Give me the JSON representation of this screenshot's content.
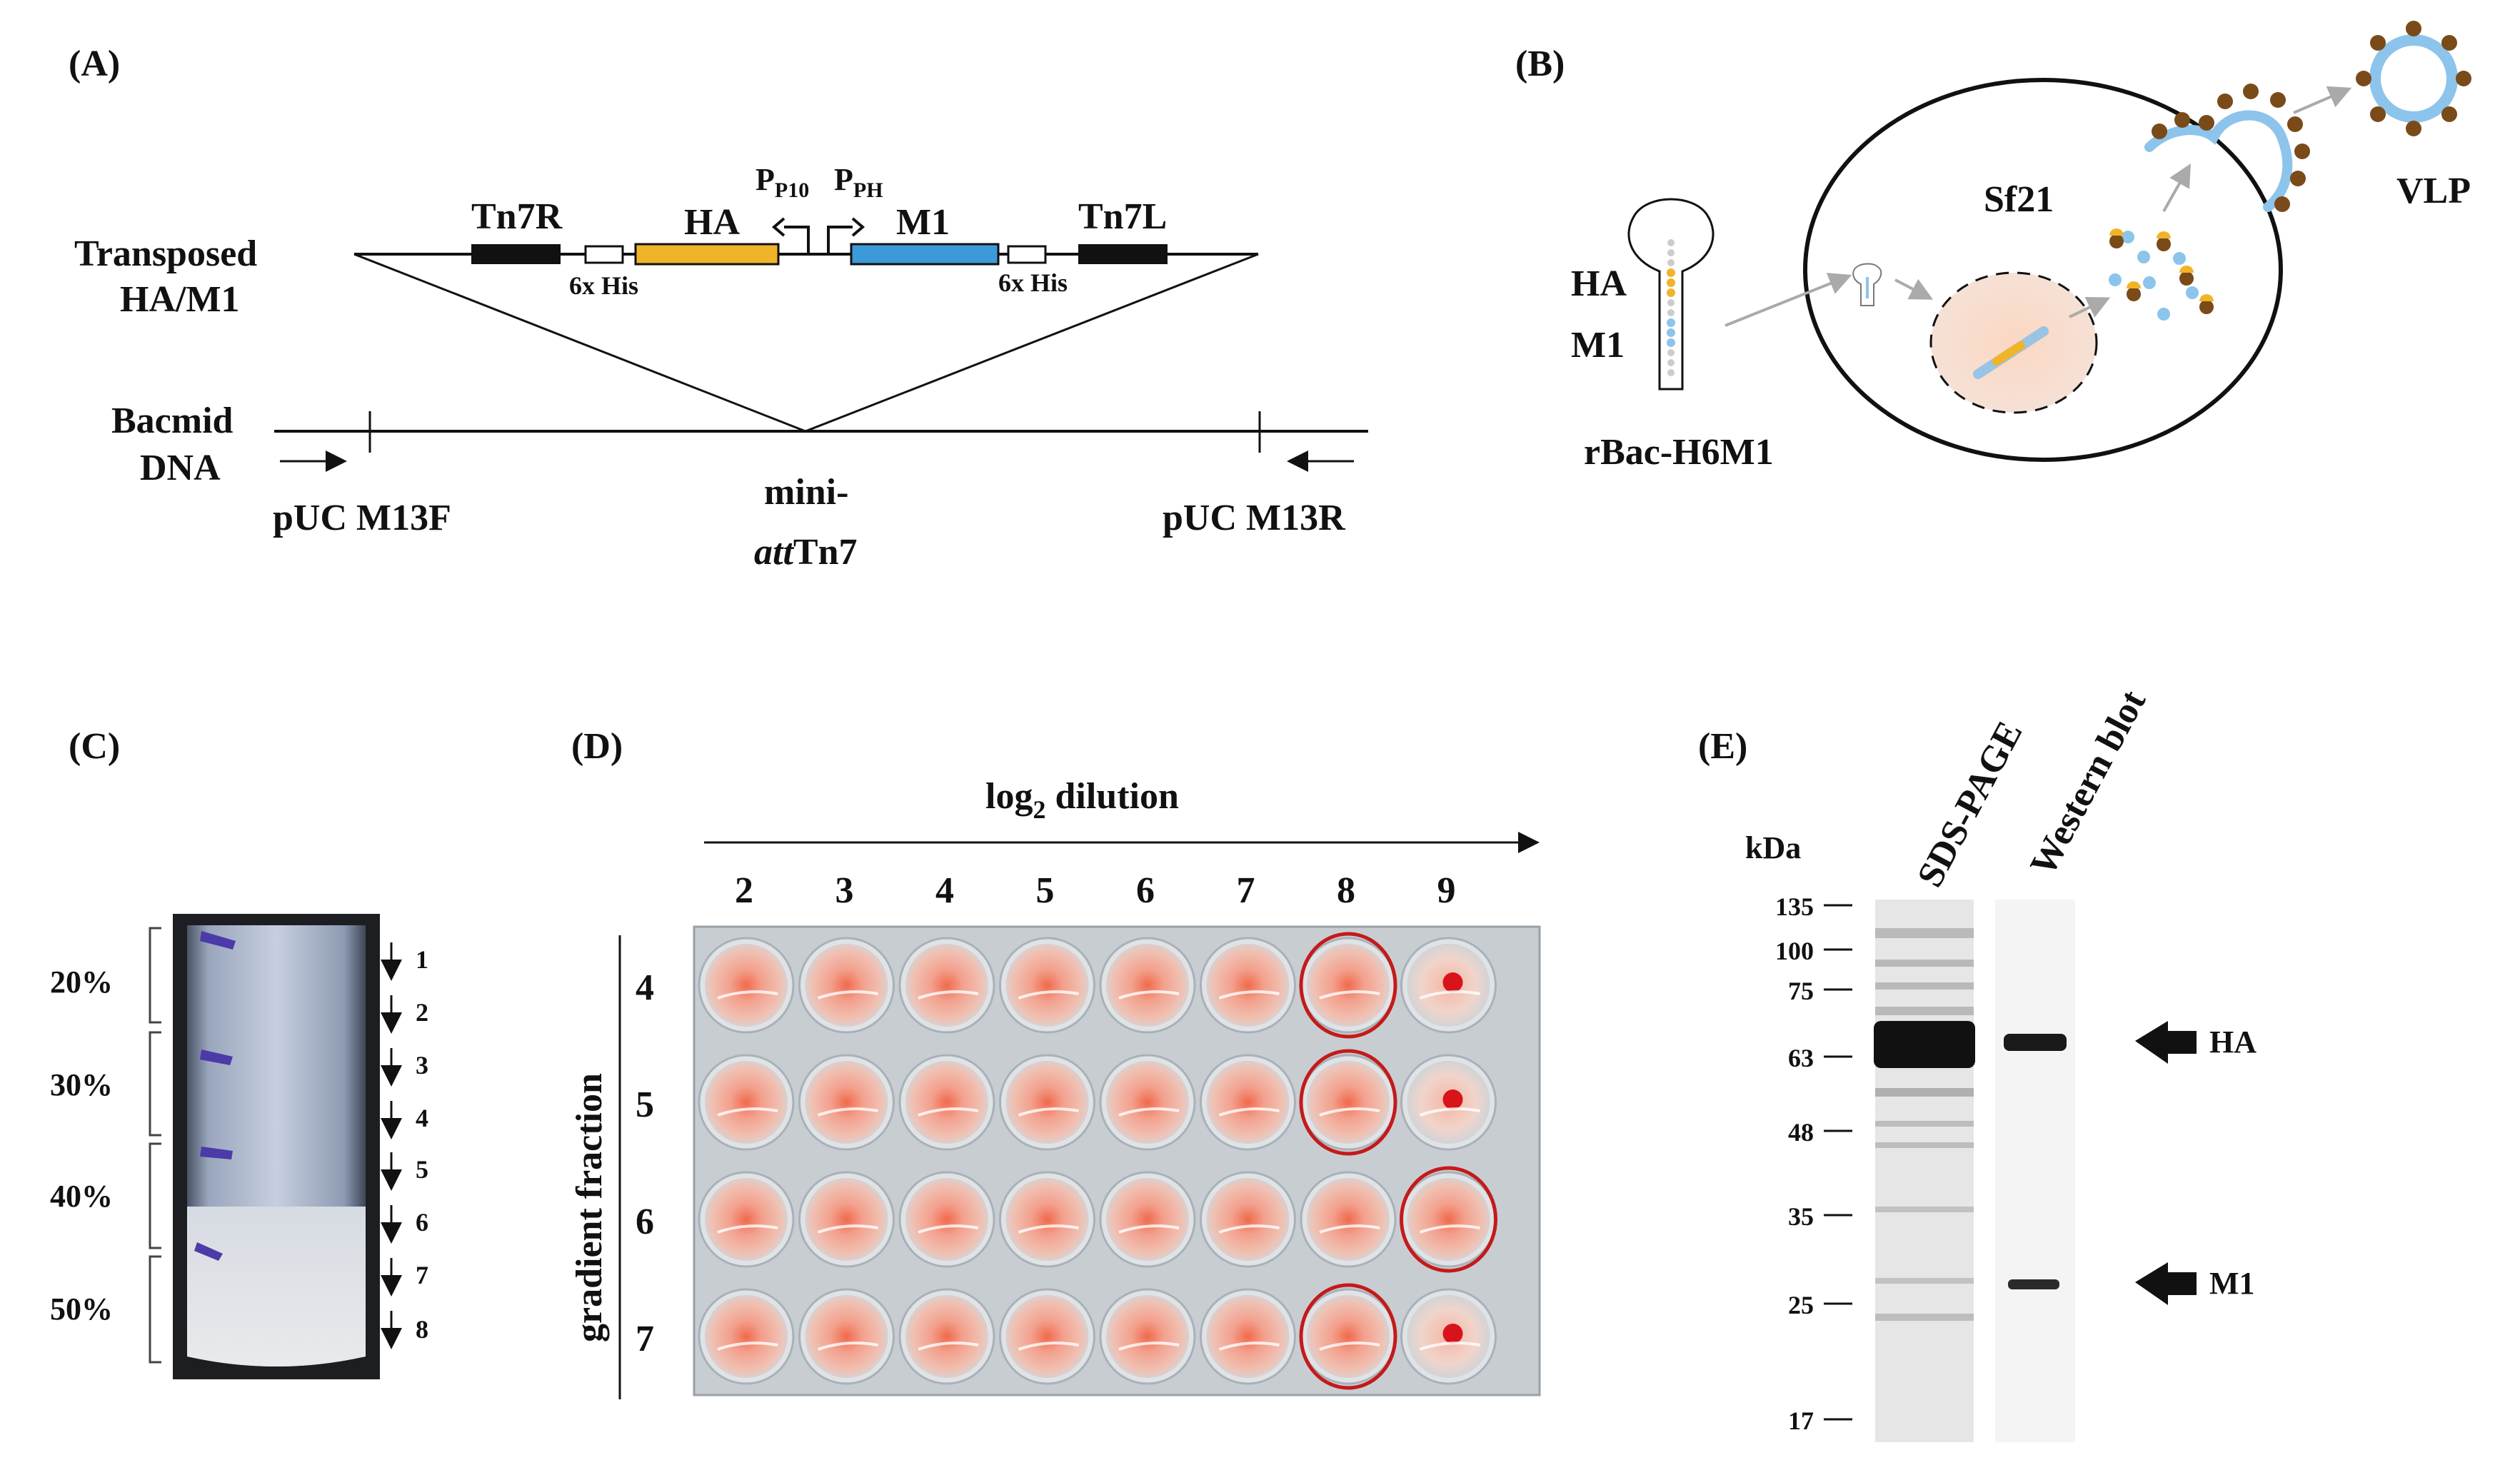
{
  "panels": {
    "a": {
      "label": "(A)",
      "transposed_line1": "Transposed",
      "transposed_line2": "HA/M1",
      "tn7r": "Tn7R",
      "ha": "HA",
      "p_p10": "P",
      "p_p10_sub": "P10",
      "p_ph": "P",
      "p_ph_sub": "PH",
      "m1": "M1",
      "tn7l": "Tn7L",
      "his_left": "6x His",
      "his_right": "6x His",
      "bacmid_line1": "Bacmid",
      "bacmid_line2": "DNA",
      "primer_f": "pUC M13F",
      "mini_line1": "mini-",
      "mini_line2_italic": "att",
      "mini_line2_rest": "Tn7",
      "primer_r": "pUC M13R"
    },
    "b": {
      "label": "(B)",
      "ha": "HA",
      "m1": "M1",
      "rbac": "rBac-H6M1",
      "cell": "Sf21",
      "vlp": "VLP"
    },
    "c": {
      "label": "(C)",
      "percents": [
        "20%",
        "30%",
        "40%",
        "50%"
      ],
      "fractions": [
        "1",
        "2",
        "3",
        "4",
        "5",
        "6",
        "7",
        "8"
      ]
    },
    "d": {
      "label": "(D)",
      "title": "log",
      "title_sub": "2",
      "title_rest": " dilution",
      "ylabel": "gradient fraction",
      "columns": [
        "2",
        "3",
        "4",
        "5",
        "6",
        "7",
        "8",
        "9"
      ],
      "rows": [
        "4",
        "5",
        "6",
        "7"
      ],
      "circled_wells": [
        [
          "4",
          "8"
        ],
        [
          "5",
          "8"
        ],
        [
          "6",
          "9"
        ],
        [
          "7",
          "8"
        ]
      ]
    },
    "e": {
      "label": "(E)",
      "kda": "kDa",
      "lane1": "SDS-PAGE",
      "lane2": "Western blot",
      "markers": [
        "135",
        "100",
        "75",
        "63",
        "48",
        "35",
        "25",
        "17"
      ],
      "band_ha": "HA",
      "band_m1": "M1"
    }
  },
  "colors": {
    "ha_gene": "#f0b429",
    "m1_gene": "#3d9ad9",
    "tn7": "#111111",
    "blood_red": "#d9442e",
    "circle_red": "#c41a1a",
    "vlp_blue": "#8cc4ec",
    "vlp_brown": "#7a4a18",
    "nucleus": "#f9d8c6"
  }
}
